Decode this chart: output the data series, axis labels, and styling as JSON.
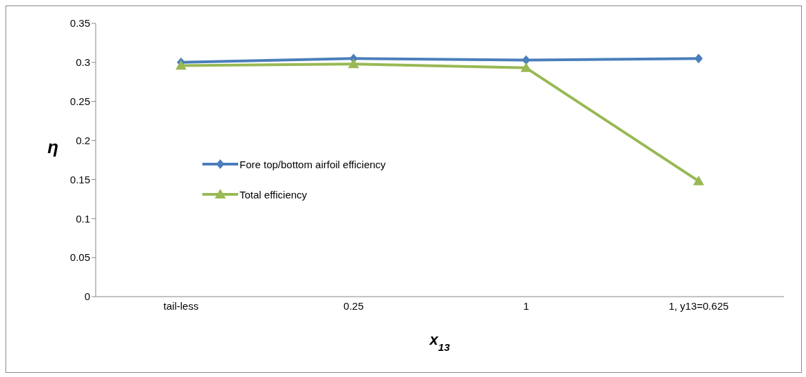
{
  "chart_data": {
    "type": "line",
    "xlabel": "x$_{13}$",
    "ylabel": "η",
    "categories": [
      "tail-less",
      "0.25",
      "1",
      "1, y13=0.625"
    ],
    "series": [
      {
        "name": "Fore top/bottom airfoil efficiency",
        "color": "#4a7ebb",
        "values": [
          0.3,
          0.305,
          0.303,
          0.305
        ],
        "marker": "diamond"
      },
      {
        "name": "Total efficiency",
        "color": "#98b954",
        "values": [
          0.296,
          0.298,
          0.293,
          0.148
        ],
        "marker": "triangle"
      }
    ],
    "ylim": [
      0,
      0.35
    ],
    "yticks": [
      0,
      0.05,
      0.1,
      0.15,
      0.2,
      0.25,
      0.3,
      0.35
    ],
    "grid": false,
    "legend": "left",
    "line_style": "solid"
  }
}
